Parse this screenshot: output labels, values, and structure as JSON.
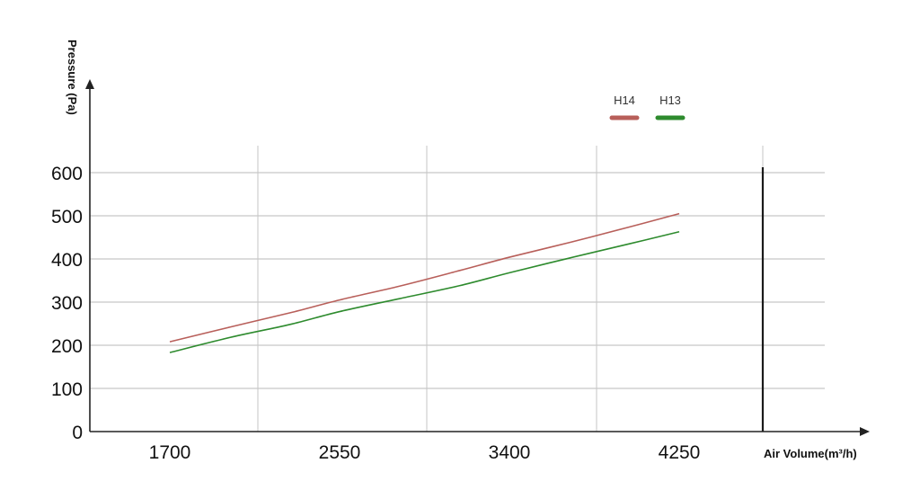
{
  "chart_data": {
    "type": "line",
    "xlabel": "Air Volume(m³/h)",
    "ylabel": "Pressure (Pa)",
    "x_ticks": [
      "1700",
      "2550",
      "3400",
      "4250"
    ],
    "y_ticks": [
      "0",
      "100",
      "200",
      "300",
      "400",
      "500",
      "600"
    ],
    "xlim": [
      1700,
      4250
    ],
    "ylim": [
      0,
      600
    ],
    "grid": true,
    "legend_position": "top-right",
    "series": [
      {
        "name": "H14",
        "color": "#b85f5a",
        "x": [
          1700,
          2000,
          2300,
          2550,
          2850,
          3150,
          3400,
          3700,
          4000,
          4250
        ],
        "y": [
          208,
          242,
          275,
          305,
          337,
          373,
          404,
          438,
          474,
          505
        ]
      },
      {
        "name": "H13",
        "color": "#2e8b2e",
        "x": [
          1700,
          2000,
          2300,
          2550,
          2850,
          3150,
          3400,
          3700,
          4000,
          4250
        ],
        "y": [
          183,
          218,
          248,
          278,
          308,
          338,
          368,
          402,
          435,
          463
        ]
      }
    ]
  }
}
